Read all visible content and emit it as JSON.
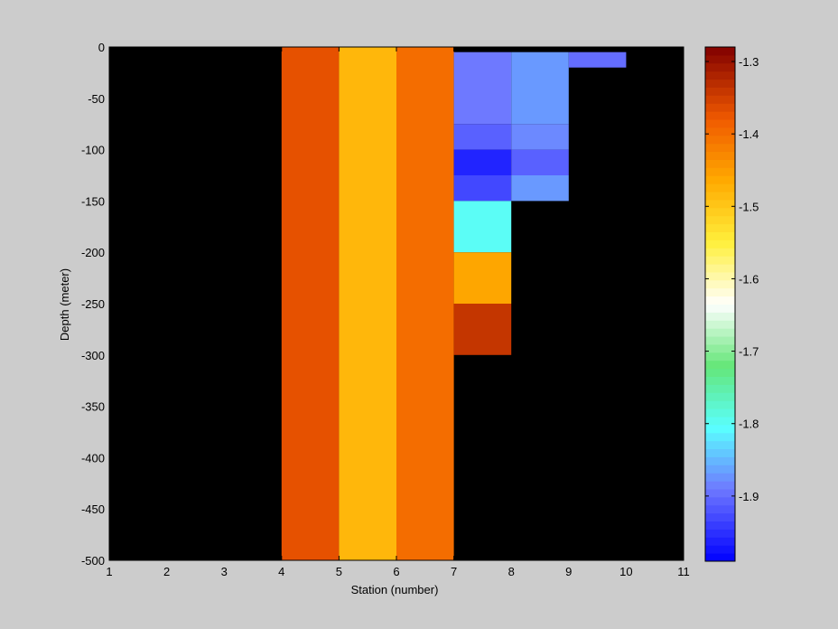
{
  "chart_data": {
    "type": "heatmap",
    "title": "",
    "xlabel": "Station (number)",
    "ylabel": "Depth (meter)",
    "xlim": [
      1,
      11
    ],
    "ylim": [
      -500,
      0
    ],
    "x_ticks": [
      1,
      2,
      3,
      4,
      5,
      6,
      7,
      8,
      9,
      10,
      11
    ],
    "y_ticks": [
      0,
      -50,
      -100,
      -150,
      -200,
      -250,
      -300,
      -350,
      -400,
      -450,
      -500
    ],
    "background_color": "#000000",
    "colorbar": {
      "range": [
        -1.99,
        -1.28
      ],
      "ticks": [
        -1.3,
        -1.4,
        -1.5,
        -1.6,
        -1.7,
        -1.8,
        -1.9
      ],
      "colormap": "blue-cyan-green-white-yellow-orange-red"
    },
    "cells": [
      {
        "x0": 4,
        "x1": 5,
        "y_top": 0,
        "y_bottom": -500,
        "value": -1.37
      },
      {
        "x0": 5,
        "x1": 6,
        "y_top": 0,
        "y_bottom": -500,
        "value": -1.48
      },
      {
        "x0": 6,
        "x1": 7,
        "y_top": 0,
        "y_bottom": -500,
        "value": -1.4
      },
      {
        "x0": 7,
        "x1": 8,
        "y_top": -5,
        "y_bottom": -75,
        "value": -1.89
      },
      {
        "x0": 7,
        "x1": 8,
        "y_top": -75,
        "y_bottom": -100,
        "value": -1.91
      },
      {
        "x0": 7,
        "x1": 8,
        "y_top": -100,
        "y_bottom": -125,
        "value": -1.96
      },
      {
        "x0": 7,
        "x1": 8,
        "y_top": -125,
        "y_bottom": -150,
        "value": -1.93
      },
      {
        "x0": 7,
        "x1": 8,
        "y_top": -150,
        "y_bottom": -200,
        "value": -1.8
      },
      {
        "x0": 7,
        "x1": 8,
        "y_top": -200,
        "y_bottom": -250,
        "value": -1.46
      },
      {
        "x0": 7,
        "x1": 8,
        "y_top": -250,
        "y_bottom": -300,
        "value": -1.34
      },
      {
        "x0": 8,
        "x1": 9,
        "y_top": -5,
        "y_bottom": -75,
        "value": -1.87
      },
      {
        "x0": 8,
        "x1": 9,
        "y_top": -75,
        "y_bottom": -100,
        "value": -1.88
      },
      {
        "x0": 8,
        "x1": 9,
        "y_top": -100,
        "y_bottom": -125,
        "value": -1.91
      },
      {
        "x0": 8,
        "x1": 9,
        "y_top": -125,
        "y_bottom": -150,
        "value": -1.87
      },
      {
        "x0": 9,
        "x1": 10,
        "y_top": -5,
        "y_bottom": -20,
        "value": -1.9
      }
    ]
  }
}
